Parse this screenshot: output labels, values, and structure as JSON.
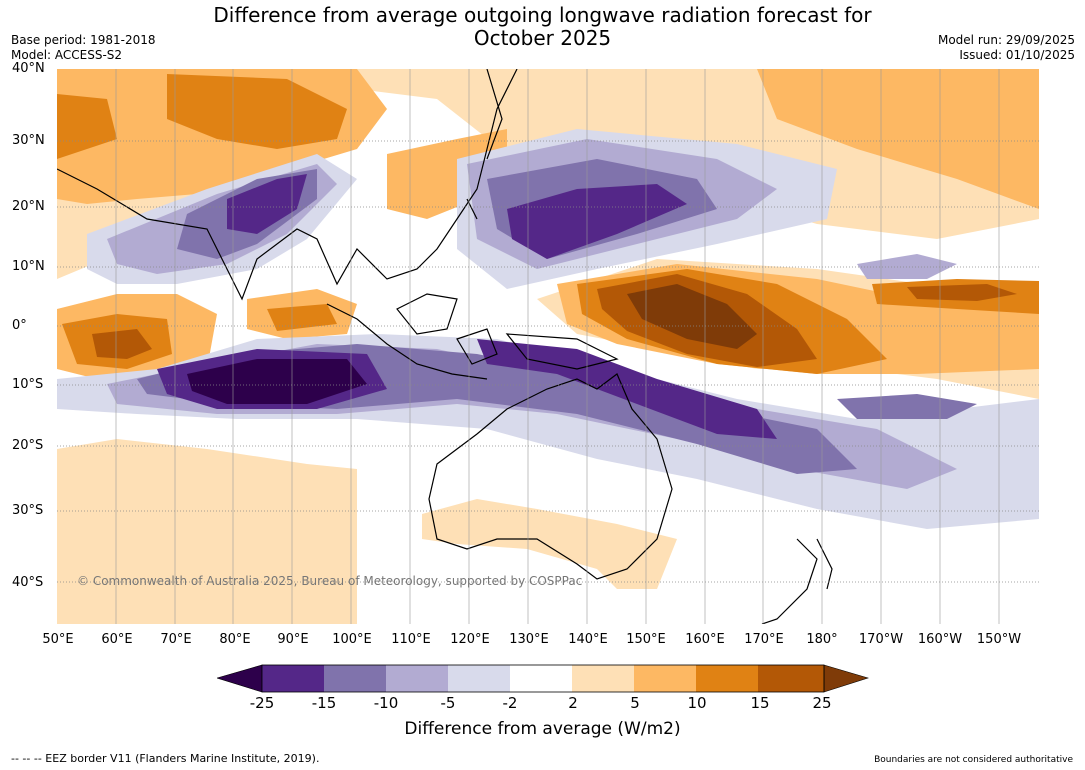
{
  "header": {
    "title_line1": "Difference from average outgoing longwave radiation forecast for",
    "title_line2": "October 2025",
    "base_period": "Base period: 1981-2018",
    "model": "Model: ACCESS-S2",
    "model_run": "Model run: 29/09/2025",
    "issued": "Issued: 01/10/2025"
  },
  "map": {
    "lat_labels": [
      "40°N",
      "30°N",
      "20°N",
      "10°N",
      "0°",
      "10°S",
      "20°S",
      "30°S",
      "40°S"
    ],
    "lon_labels": [
      "50°E",
      "60°E",
      "70°E",
      "80°E",
      "90°E",
      "100°E",
      "110°E",
      "120°E",
      "130°E",
      "140°E",
      "150°E",
      "160°E",
      "170°E",
      "180°",
      "170°W",
      "160°W",
      "150°W"
    ],
    "copyright": "© Commonwealth of Australia 2025, Bureau of Meteorology, supported by COSPPac"
  },
  "colorbar": {
    "colors": [
      "#2d004b",
      "#542788",
      "#8073ac",
      "#b2abd2",
      "#d8daeb",
      "#ffffff",
      "#fee0b6",
      "#fdb863",
      "#e08214",
      "#b35806",
      "#7f3b08"
    ],
    "ticks": [
      "-25",
      "-15",
      "-10",
      "-5",
      "-2",
      "2",
      "5",
      "10",
      "15",
      "25"
    ],
    "label": "Difference from average (W/m2)"
  },
  "footer": {
    "eez": "--  --  -- EEZ border V11 (Flanders Marine Institute, 2019).",
    "boundaries": "Boundaries are not considered authoritative"
  }
}
